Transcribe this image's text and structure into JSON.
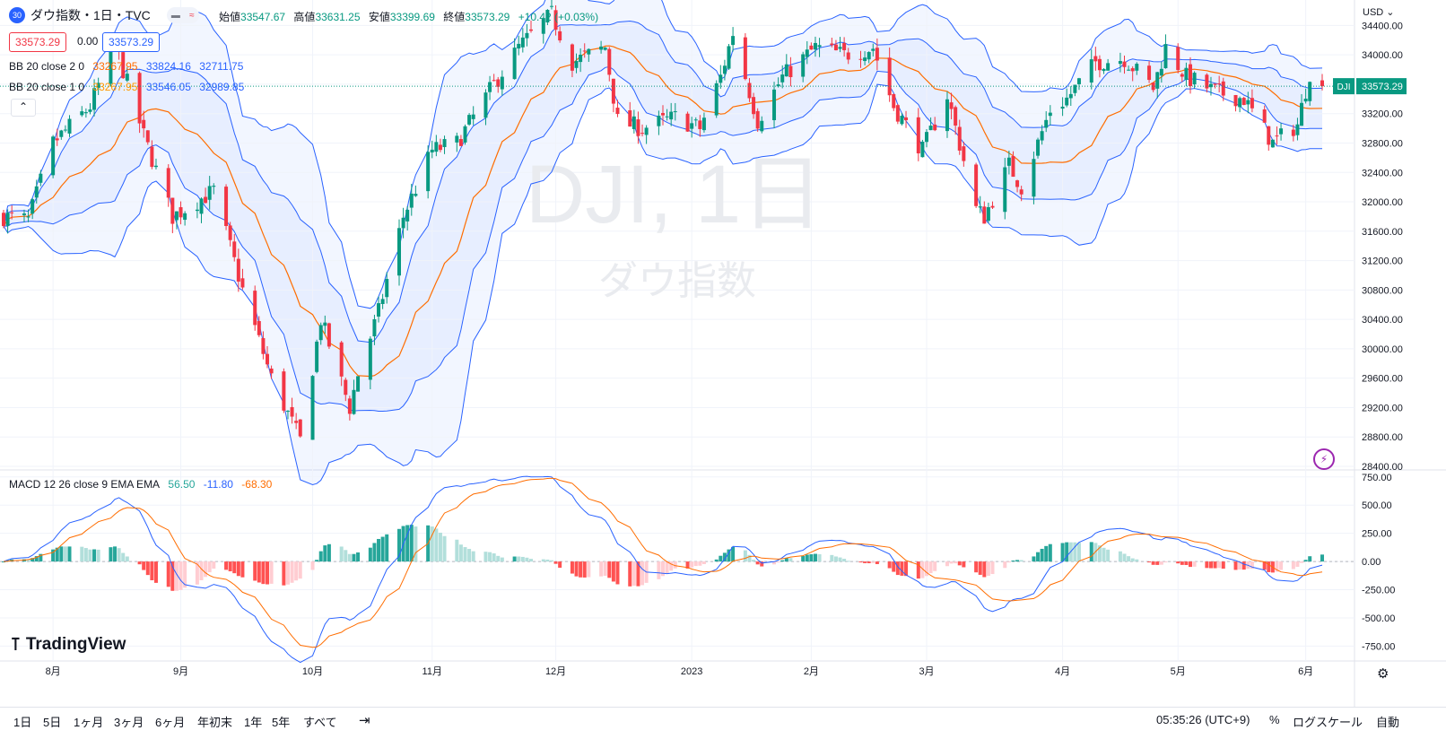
{
  "header": {
    "symbol_badge": "30",
    "symbol_title": "ダウ指数・1日・TVC",
    "ohlc": [
      {
        "label": "始値",
        "value": "33547.67"
      },
      {
        "label": "高値",
        "value": "33631.25"
      },
      {
        "label": "安値",
        "value": "33399.69"
      },
      {
        "label": "終値",
        "value": "33573.29"
      }
    ],
    "change": "+10.42 (+0.03%)",
    "pill_sell": "33573.29",
    "pill_spread": "0.00",
    "pill_buy": "33573.29"
  },
  "indicators": {
    "bb2": {
      "name": "BB 20 close 2 0",
      "basis": "33267.95",
      "upper": "33824.16",
      "lower": "32711.75"
    },
    "bb1": {
      "name": "BB 20 close 1 0",
      "basis": "33267.95",
      "upper": "33546.05",
      "lower": "32989.85"
    },
    "macd": {
      "name": "MACD 12 26 close 9 EMA EMA",
      "hist": "56.50",
      "macd": "-11.80",
      "signal": "-68.30"
    }
  },
  "watermark": {
    "main": "DJI, 1日",
    "sub": "ダウ指数"
  },
  "price_axis": {
    "currency": "USD",
    "ticks": [
      "34400.00",
      "34000.00",
      "33600.00",
      "33200.00",
      "32800.00",
      "32400.00",
      "32000.00",
      "31600.00",
      "31200.00",
      "30800.00",
      "30400.00",
      "30000.00",
      "29600.00",
      "29200.00",
      "28800.00",
      "28400.00"
    ],
    "last_label": "DJI",
    "last_value": "33573.29"
  },
  "macd_axis": {
    "ticks": [
      "750.00",
      "500.00",
      "250.00",
      "0.00",
      "-250.00",
      "-500.00",
      "-750.00"
    ]
  },
  "time_axis": {
    "labels": [
      "8月",
      "9月",
      "10月",
      "11月",
      "12月",
      "2023",
      "2月",
      "3月",
      "4月",
      "5月",
      "6月"
    ]
  },
  "timeframes": [
    "1日",
    "5日",
    "1ヶ月",
    "3ヶ月",
    "6ヶ月",
    "年初末",
    "1年",
    "5年",
    "すべて"
  ],
  "footer": {
    "clock": "05:35:26 (UTC+9)",
    "percent": "%",
    "log_scale": "ログスケール",
    "auto": "自動",
    "logo": "TradingView"
  },
  "colors": {
    "up": "#089981",
    "down": "#f23645",
    "basis": "#ff6d00",
    "band": "#2962ff",
    "macd_line": "#2962ff",
    "signal_line": "#ff6d00"
  },
  "chart_data": {
    "type": "candlestick",
    "title": "ダウ指数・1日・TVC",
    "ylim": [
      28400,
      34600
    ],
    "macd_ylim": [
      -850,
      780
    ],
    "x_labels": [
      "8月",
      "9月",
      "10月",
      "11月",
      "12月",
      "2023",
      "2月",
      "3月",
      "4月",
      "5月",
      "6月"
    ],
    "anchors": [
      {
        "date": "2022-07-20",
        "close": 31800
      },
      {
        "date": "2022-07-26",
        "close": 31750
      },
      {
        "date": "2022-08-01",
        "close": 32800
      },
      {
        "date": "2022-08-10",
        "close": 33300
      },
      {
        "date": "2022-08-16",
        "close": 34150
      },
      {
        "date": "2022-08-23",
        "close": 32900
      },
      {
        "date": "2022-08-30",
        "close": 31800
      },
      {
        "date": "2022-09-09",
        "close": 32150
      },
      {
        "date": "2022-09-16",
        "close": 30800
      },
      {
        "date": "2022-09-23",
        "close": 29600
      },
      {
        "date": "2022-09-30",
        "close": 28750
      },
      {
        "date": "2022-10-05",
        "close": 30400
      },
      {
        "date": "2022-10-12",
        "close": 29200
      },
      {
        "date": "2022-10-14",
        "close": 29650
      },
      {
        "date": "2022-10-19",
        "close": 30500
      },
      {
        "date": "2022-10-25",
        "close": 31800
      },
      {
        "date": "2022-11-01",
        "close": 32700
      },
      {
        "date": "2022-11-07",
        "close": 32800
      },
      {
        "date": "2022-11-16",
        "close": 33600
      },
      {
        "date": "2022-11-22",
        "close": 34100
      },
      {
        "date": "2022-11-30",
        "close": 34550
      },
      {
        "date": "2022-12-05",
        "close": 33900
      },
      {
        "date": "2022-12-13",
        "close": 34100
      },
      {
        "date": "2022-12-16",
        "close": 33100
      },
      {
        "date": "2022-12-22",
        "close": 33000
      },
      {
        "date": "2022-12-30",
        "close": 33150
      },
      {
        "date": "2023-01-05",
        "close": 33000
      },
      {
        "date": "2023-01-10",
        "close": 33700
      },
      {
        "date": "2023-01-13",
        "close": 34300
      },
      {
        "date": "2023-01-19",
        "close": 33100
      },
      {
        "date": "2023-01-25",
        "close": 33700
      },
      {
        "date": "2023-02-02",
        "close": 34100
      },
      {
        "date": "2023-02-09",
        "close": 34000
      },
      {
        "date": "2023-02-16",
        "close": 34100
      },
      {
        "date": "2023-02-21",
        "close": 33300
      },
      {
        "date": "2023-02-28",
        "close": 32700
      },
      {
        "date": "2023-03-06",
        "close": 33450
      },
      {
        "date": "2023-03-13",
        "close": 31900
      },
      {
        "date": "2023-03-15",
        "close": 31800
      },
      {
        "date": "2023-03-21",
        "close": 32500
      },
      {
        "date": "2023-03-24",
        "close": 32200
      },
      {
        "date": "2023-03-31",
        "close": 33250
      },
      {
        "date": "2023-04-04",
        "close": 33400
      },
      {
        "date": "2023-04-11",
        "close": 33900
      },
      {
        "date": "2023-04-18",
        "close": 33950
      },
      {
        "date": "2023-04-25",
        "close": 33550
      },
      {
        "date": "2023-04-28",
        "close": 34100
      },
      {
        "date": "2023-05-03",
        "close": 33700
      },
      {
        "date": "2023-05-10",
        "close": 33500
      },
      {
        "date": "2023-05-17",
        "close": 33400
      },
      {
        "date": "2023-05-24",
        "close": 32800
      },
      {
        "date": "2023-05-30",
        "close": 33050
      },
      {
        "date": "2023-06-02",
        "close": 33760
      },
      {
        "date": "2023-06-05",
        "close": 33573.29
      }
    ]
  }
}
